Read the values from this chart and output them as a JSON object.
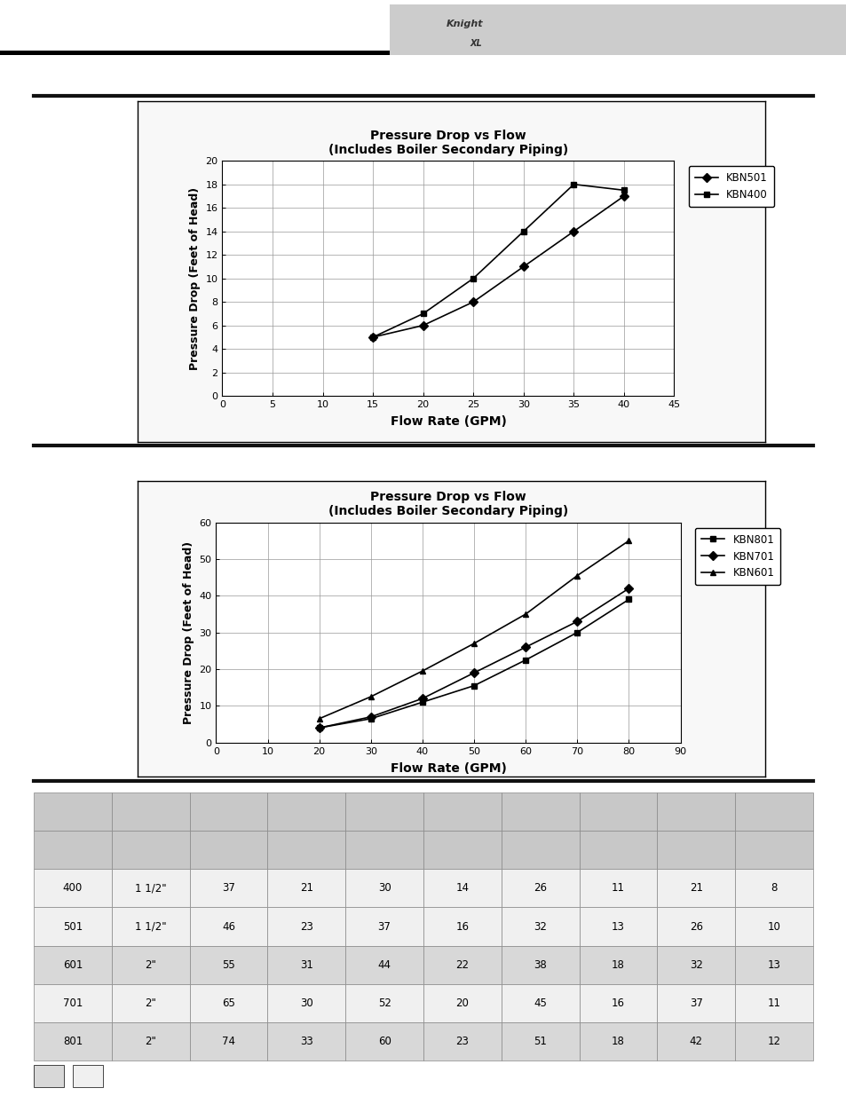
{
  "chart1": {
    "title": "Pressure Drop vs Flow\n(Includes Boiler Secondary Piping)",
    "xlabel": "Flow Rate (GPM)",
    "ylabel": "Pressure Drop (Feet of Head)",
    "xlim": [
      0,
      45
    ],
    "ylim": [
      0,
      20
    ],
    "xticks": [
      0,
      5,
      10,
      15,
      20,
      25,
      30,
      35,
      40,
      45
    ],
    "yticks": [
      0,
      2,
      4,
      6,
      8,
      10,
      12,
      14,
      16,
      18,
      20
    ],
    "series": [
      {
        "label": "KBN501",
        "x": [
          15,
          20,
          25,
          30,
          35,
          40
        ],
        "y": [
          5.0,
          6.0,
          8.0,
          11.0,
          14.0,
          17.0
        ],
        "marker": "D",
        "color": "#000000"
      },
      {
        "label": "KBN400",
        "x": [
          15,
          20,
          25,
          30,
          35,
          40
        ],
        "y": [
          5.0,
          7.0,
          10.0,
          14.0,
          18.0,
          17.5
        ],
        "marker": "s",
        "color": "#000000"
      }
    ]
  },
  "chart2": {
    "title": "Pressure Drop vs Flow\n(Includes Boiler Secondary Piping)",
    "xlabel": "Flow Rate (GPM)",
    "ylabel": "Pressure Drop (Feet of Head)",
    "xlim": [
      0,
      90
    ],
    "ylim": [
      0,
      60
    ],
    "xticks": [
      0,
      10,
      20,
      30,
      40,
      50,
      60,
      70,
      80,
      90
    ],
    "yticks": [
      0,
      10,
      20,
      30,
      40,
      50,
      60
    ],
    "series": [
      {
        "label": "KBN801",
        "x": [
          20,
          30,
          40,
          50,
          60,
          70,
          80
        ],
        "y": [
          4.0,
          6.5,
          11.0,
          15.5,
          22.5,
          30.0,
          39.0
        ],
        "marker": "s",
        "color": "#000000"
      },
      {
        "label": "KBN701",
        "x": [
          20,
          30,
          40,
          50,
          60,
          70,
          80
        ],
        "y": [
          4.0,
          7.0,
          12.0,
          19.0,
          26.0,
          33.0,
          42.0
        ],
        "marker": "D",
        "color": "#000000"
      },
      {
        "label": "KBN601",
        "x": [
          20,
          30,
          40,
          50,
          60,
          70,
          80
        ],
        "y": [
          6.5,
          12.5,
          19.5,
          27.0,
          35.0,
          45.5,
          55.0
        ],
        "marker": "^",
        "color": "#000000"
      }
    ]
  },
  "table_rows": [
    [
      "400",
      "1 1/2\"",
      "37",
      "21",
      "30",
      "14",
      "26",
      "11",
      "21",
      "8"
    ],
    [
      "501",
      "1 1/2\"",
      "46",
      "23",
      "37",
      "16",
      "32",
      "13",
      "26",
      "10"
    ],
    [
      "601",
      "2\"",
      "55",
      "31",
      "44",
      "22",
      "38",
      "18",
      "32",
      "13"
    ],
    [
      "701",
      "2\"",
      "65",
      "30",
      "52",
      "20",
      "45",
      "16",
      "37",
      "11"
    ],
    [
      "801",
      "2\"",
      "74",
      "33",
      "60",
      "23",
      "51",
      "18",
      "42",
      "12"
    ]
  ],
  "table_row_colors": [
    "#f0f0f0",
    "#f0f0f0",
    "#d8d8d8",
    "#f0f0f0",
    "#d8d8d8"
  ],
  "table_header_color": "#c8c8c8",
  "page_bg": "#ffffff",
  "logo_bar_color": "#cccccc",
  "chart_border_color": "#000000",
  "grid_color": "#999999",
  "sep_color": "#111111",
  "footer_sq1_color": "#d8d8d8",
  "footer_sq2_color": "#f0f0f0"
}
